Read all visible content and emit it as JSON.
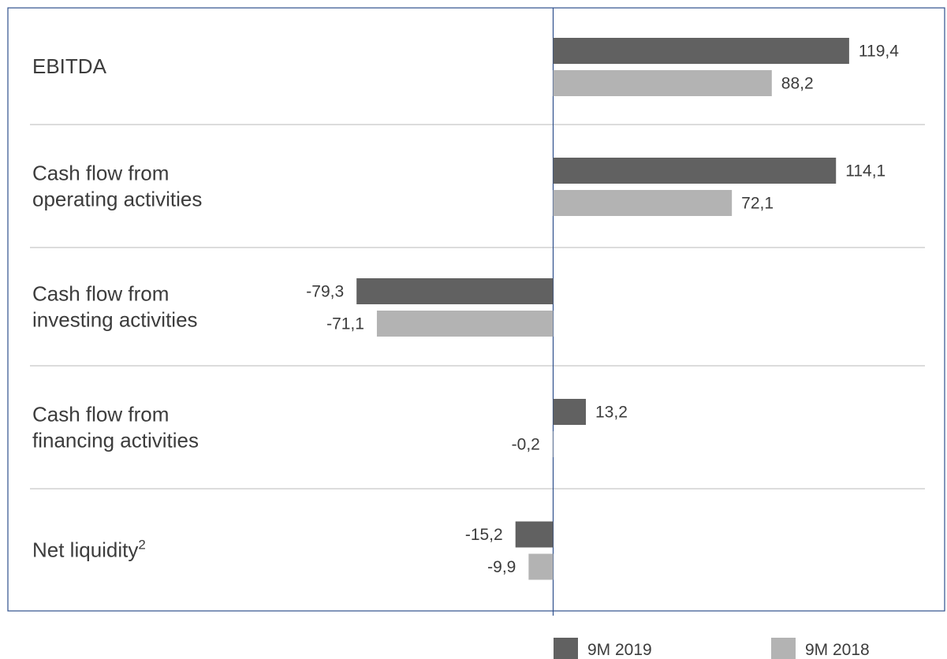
{
  "chart_data": {
    "type": "bar",
    "orientation": "horizontal",
    "categories": [
      [
        "EBITDA"
      ],
      [
        "Cash flow from",
        "operating activities"
      ],
      [
        "Cash flow from",
        "investing activities"
      ],
      [
        "Cash flow from",
        "financing activities"
      ],
      [
        "Net liquidity"
      ]
    ],
    "category_superscripts": [
      "",
      "",
      "",
      "",
      "2"
    ],
    "series": [
      {
        "name": "9M 2019",
        "color": "#616161",
        "values": [
          119.4,
          114.1,
          -79.3,
          13.2,
          -15.2
        ],
        "labels": [
          "119,4",
          "114,1",
          "-79,3",
          "13,2",
          "-15,2"
        ]
      },
      {
        "name": "9M 2018",
        "color": "#b3b3b3",
        "values": [
          88.2,
          72.1,
          -71.1,
          -0.2,
          -9.9
        ],
        "labels": [
          "88,2",
          "72,1",
          "-71,1",
          "-0,2",
          "-9,9"
        ]
      }
    ],
    "xlim": [
      -97,
      150
    ],
    "grid": false,
    "legend_position": "bottom-right",
    "colors": {
      "frame": "#2e4f8c",
      "divider": "#c8c8c8",
      "text": "#3c3c3c"
    }
  }
}
